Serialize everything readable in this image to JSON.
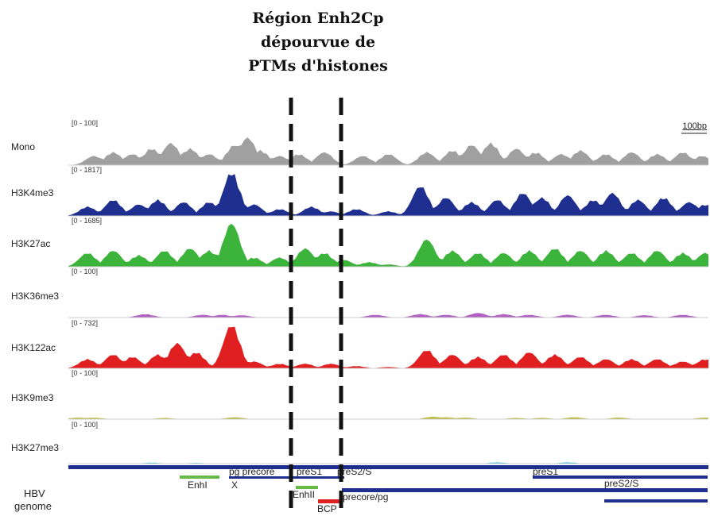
{
  "title_lines": [
    "Région Enh2Cp",
    "dépourvue de",
    "PTMs d'histones"
  ],
  "scale_label": "100bp",
  "tracks": [
    {
      "name": "Mono",
      "range": "[0 - 100]",
      "color": "#a0a0a0",
      "peaks": [
        [
          0.04,
          0.25
        ],
        [
          0.07,
          0.35
        ],
        [
          0.1,
          0.3
        ],
        [
          0.13,
          0.45
        ],
        [
          0.16,
          0.6
        ],
        [
          0.19,
          0.45
        ],
        [
          0.22,
          0.3
        ],
        [
          0.26,
          0.55
        ],
        [
          0.28,
          0.75
        ],
        [
          0.3,
          0.4
        ],
        [
          0.33,
          0.25
        ],
        [
          0.36,
          0.3
        ],
        [
          0.4,
          0.35
        ],
        [
          0.46,
          0.25
        ],
        [
          0.5,
          0.3
        ],
        [
          0.56,
          0.35
        ],
        [
          0.6,
          0.4
        ],
        [
          0.63,
          0.55
        ],
        [
          0.66,
          0.6
        ],
        [
          0.7,
          0.45
        ],
        [
          0.73,
          0.35
        ],
        [
          0.77,
          0.3
        ],
        [
          0.8,
          0.4
        ],
        [
          0.84,
          0.3
        ],
        [
          0.88,
          0.35
        ],
        [
          0.92,
          0.3
        ],
        [
          0.96,
          0.35
        ],
        [
          0.99,
          0.25
        ]
      ]
    },
    {
      "name": "H3K4me3",
      "range": "[0 - 1817]",
      "color": "#1f2f8f",
      "peaks": [
        [
          0.03,
          0.2
        ],
        [
          0.07,
          0.35
        ],
        [
          0.11,
          0.25
        ],
        [
          0.14,
          0.35
        ],
        [
          0.18,
          0.3
        ],
        [
          0.22,
          0.3
        ],
        [
          0.255,
          0.95
        ],
        [
          0.29,
          0.25
        ],
        [
          0.33,
          0.15
        ],
        [
          0.38,
          0.2
        ],
        [
          0.41,
          0.1
        ],
        [
          0.45,
          0.15
        ],
        [
          0.5,
          0.1
        ],
        [
          0.55,
          0.65
        ],
        [
          0.59,
          0.4
        ],
        [
          0.63,
          0.3
        ],
        [
          0.67,
          0.35
        ],
        [
          0.71,
          0.5
        ],
        [
          0.74,
          0.4
        ],
        [
          0.78,
          0.45
        ],
        [
          0.82,
          0.35
        ],
        [
          0.85,
          0.5
        ],
        [
          0.89,
          0.35
        ],
        [
          0.93,
          0.4
        ],
        [
          0.97,
          0.3
        ],
        [
          0.995,
          0.25
        ]
      ]
    },
    {
      "name": "H3K27ac",
      "range": "[0 - 1685]",
      "color": "#3cb43c",
      "peaks": [
        [
          0.03,
          0.3
        ],
        [
          0.07,
          0.35
        ],
        [
          0.11,
          0.25
        ],
        [
          0.15,
          0.35
        ],
        [
          0.19,
          0.4
        ],
        [
          0.22,
          0.35
        ],
        [
          0.255,
          0.95
        ],
        [
          0.29,
          0.2
        ],
        [
          0.33,
          0.2
        ],
        [
          0.37,
          0.4
        ],
        [
          0.4,
          0.3
        ],
        [
          0.43,
          0.15
        ],
        [
          0.47,
          0.1
        ],
        [
          0.5,
          0.05
        ],
        [
          0.56,
          0.6
        ],
        [
          0.6,
          0.35
        ],
        [
          0.64,
          0.3
        ],
        [
          0.68,
          0.3
        ],
        [
          0.72,
          0.35
        ],
        [
          0.76,
          0.4
        ],
        [
          0.8,
          0.35
        ],
        [
          0.84,
          0.35
        ],
        [
          0.88,
          0.3
        ],
        [
          0.92,
          0.35
        ],
        [
          0.96,
          0.3
        ],
        [
          0.995,
          0.3
        ]
      ]
    },
    {
      "name": "H3K36me3",
      "range": "[0 - 100]",
      "color": "#b060c0",
      "peaks": [
        [
          0.12,
          0.15
        ],
        [
          0.21,
          0.12
        ],
        [
          0.24,
          0.12
        ],
        [
          0.27,
          0.1
        ],
        [
          0.48,
          0.12
        ],
        [
          0.55,
          0.15
        ],
        [
          0.59,
          0.12
        ],
        [
          0.64,
          0.2
        ],
        [
          0.68,
          0.15
        ],
        [
          0.72,
          0.12
        ],
        [
          0.78,
          0.12
        ],
        [
          0.84,
          0.12
        ],
        [
          0.9,
          0.1
        ],
        [
          0.96,
          0.12
        ]
      ]
    },
    {
      "name": "H3K122ac",
      "range": "[0 - 732]",
      "color": "#e02020",
      "peaks": [
        [
          0.03,
          0.2
        ],
        [
          0.07,
          0.3
        ],
        [
          0.1,
          0.25
        ],
        [
          0.14,
          0.3
        ],
        [
          0.17,
          0.55
        ],
        [
          0.2,
          0.35
        ],
        [
          0.255,
          0.95
        ],
        [
          0.29,
          0.15
        ],
        [
          0.33,
          0.1
        ],
        [
          0.37,
          0.1
        ],
        [
          0.41,
          0.1
        ],
        [
          0.45,
          0.05
        ],
        [
          0.5,
          0.03
        ],
        [
          0.56,
          0.4
        ],
        [
          0.6,
          0.3
        ],
        [
          0.64,
          0.25
        ],
        [
          0.68,
          0.3
        ],
        [
          0.72,
          0.35
        ],
        [
          0.76,
          0.3
        ],
        [
          0.8,
          0.25
        ],
        [
          0.84,
          0.2
        ],
        [
          0.88,
          0.2
        ],
        [
          0.92,
          0.2
        ],
        [
          0.96,
          0.15
        ],
        [
          0.995,
          0.2
        ]
      ]
    },
    {
      "name": "H3K9me3",
      "range": "[0 - 100]",
      "color": "#b8b830",
      "peaks": [
        [
          0.015,
          0.1
        ],
        [
          0.04,
          0.1
        ],
        [
          0.15,
          0.08
        ],
        [
          0.26,
          0.12
        ],
        [
          0.57,
          0.15
        ],
        [
          0.59,
          0.12
        ],
        [
          0.62,
          0.1
        ],
        [
          0.7,
          0.08
        ],
        [
          0.74,
          0.08
        ],
        [
          0.79,
          0.12
        ],
        [
          0.86,
          0.1
        ],
        [
          0.995,
          0.1
        ]
      ]
    },
    {
      "name": "H3K27me3",
      "range": "[0 - 100]",
      "color": "#40c0d8",
      "peaks": [
        [
          0.13,
          0.08
        ],
        [
          0.2,
          0.06
        ],
        [
          0.67,
          0.1
        ],
        [
          0.78,
          0.1
        ]
      ]
    }
  ],
  "genome": {
    "label_line1": "HBV",
    "label_line2": "genome",
    "features": [
      {
        "name": "EnhI",
        "color": "#66bb44"
      },
      {
        "name": "X",
        "color": "#1f2f8f"
      },
      {
        "name": "pg precore",
        "color": "#1f2f8f"
      },
      {
        "name": "preS1",
        "color": "#1f2f8f"
      },
      {
        "name": "preS2/S",
        "color": "#1f2f8f"
      },
      {
        "name": "EnhII",
        "color": "#66bb44"
      },
      {
        "name": "precore/pg",
        "color": "#1f2f8f"
      },
      {
        "name": "BCP",
        "color": "#e02020"
      },
      {
        "name": "preS1",
        "color": "#1f2f8f"
      },
      {
        "name": "preS2/S",
        "color": "#1f2f8f"
      }
    ]
  }
}
